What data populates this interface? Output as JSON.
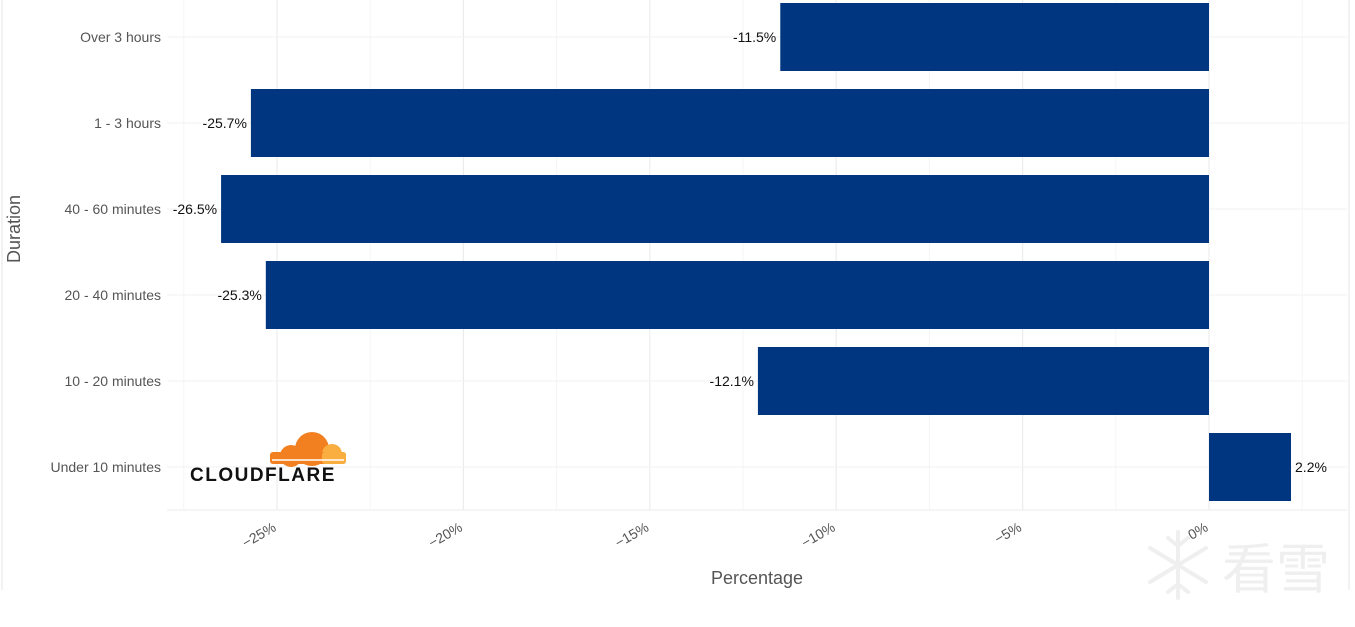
{
  "chart_data": {
    "type": "bar",
    "orientation": "horizontal",
    "categories": [
      "Over 3 hours",
      "1 - 3 hours",
      "40 - 60 minutes",
      "20 - 40 minutes",
      "10 - 20 minutes",
      "Under 10 minutes"
    ],
    "values": [
      -11.5,
      -25.7,
      -26.5,
      -25.3,
      -12.1,
      2.2
    ],
    "value_labels": [
      "-11.5%",
      "-25.7%",
      "-26.5%",
      "-25.3%",
      "-12.1%",
      "2.2%"
    ],
    "xlabel": "Percentage",
    "ylabel": "Duration",
    "xlim": [
      -28,
      3.5
    ],
    "x_ticks": [
      -25,
      -20,
      -15,
      -10,
      -5,
      0
    ],
    "x_tick_labels": [
      "−25%",
      "−20%",
      "−15%",
      "−10%",
      "−5%",
      "0%"
    ],
    "grid": true,
    "bar_color": "#003680"
  },
  "branding": {
    "logo_text": "CLOUDFLARE",
    "logo_colors": [
      "#F38020",
      "#FAAE40"
    ],
    "watermark_text": "看雪"
  }
}
